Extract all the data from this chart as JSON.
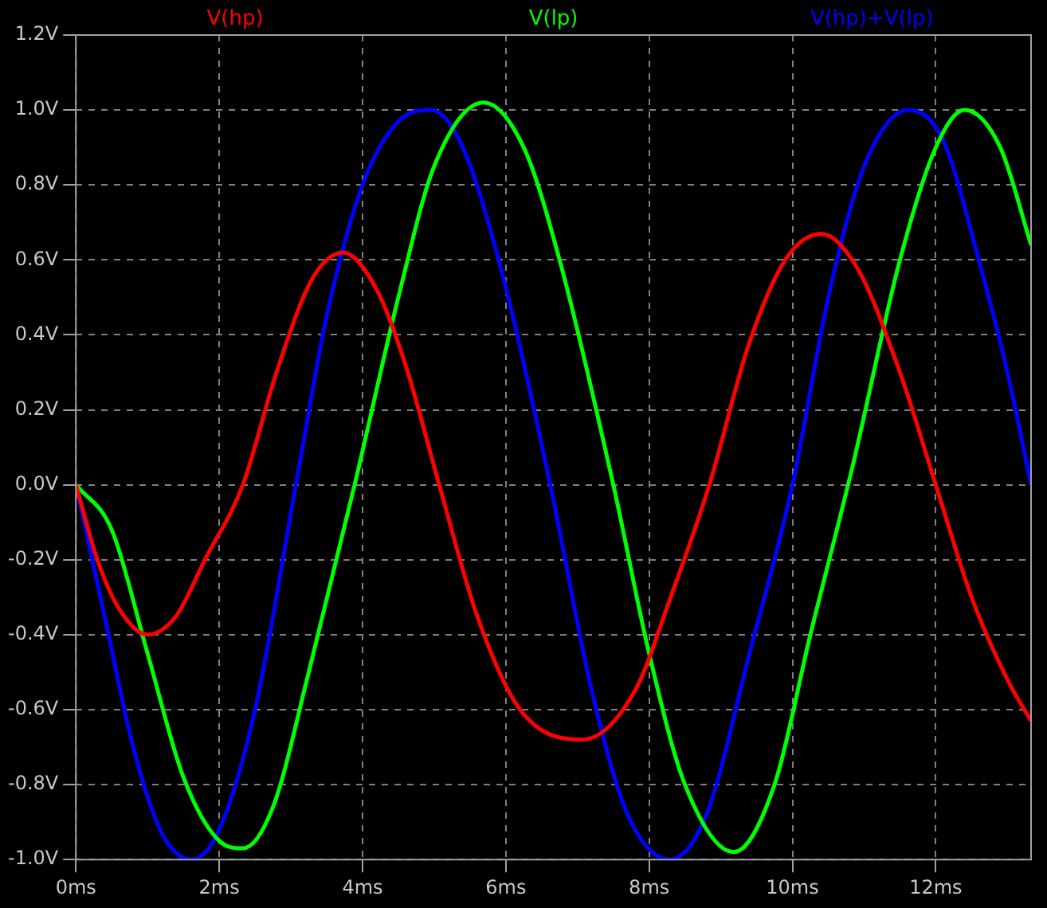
{
  "chart_data": {
    "type": "line",
    "xlim": [
      0,
      13.33
    ],
    "ylim": [
      -1.0,
      1.2
    ],
    "xticks": [
      {
        "value": 0,
        "label": "0ms"
      },
      {
        "value": 2,
        "label": "2ms"
      },
      {
        "value": 4,
        "label": "4ms"
      },
      {
        "value": 6,
        "label": "6ms"
      },
      {
        "value": 8,
        "label": "8ms"
      },
      {
        "value": 10,
        "label": "10ms"
      },
      {
        "value": 12,
        "label": "12ms"
      }
    ],
    "yticks": [
      {
        "value": -1.0,
        "label": "-1.0V"
      },
      {
        "value": -0.8,
        "label": "-0.8V"
      },
      {
        "value": -0.6,
        "label": "-0.6V"
      },
      {
        "value": -0.4,
        "label": "-0.4V"
      },
      {
        "value": -0.2,
        "label": "-0.2V"
      },
      {
        "value": 0,
        "label": "0.0V"
      },
      {
        "value": 0.2,
        "label": "0.2V"
      },
      {
        "value": 0.4,
        "label": "0.4V"
      },
      {
        "value": 0.6,
        "label": "0.6V"
      },
      {
        "value": 0.8,
        "label": "0.8V"
      },
      {
        "value": 1.0,
        "label": "1.0V"
      },
      {
        "value": 1.2,
        "label": "1.2V"
      }
    ],
    "grid": true,
    "legend": "top",
    "marker": "none",
    "line_style": "solid",
    "series": [
      {
        "name": "V(hp)",
        "color": "#ff0000",
        "x": [
          0,
          0.3,
          0.6,
          1.0,
          1.4,
          1.8,
          2.33,
          2.8,
          3.3,
          3.73,
          4.2,
          4.6,
          5.07,
          5.6,
          6.2,
          7.07,
          7.8,
          8.3,
          8.84,
          9.4,
          9.9,
          10.4,
          10.9,
          11.5,
          12.0,
          12.5,
          13.0,
          13.33
        ],
        "values": [
          0,
          -0.2,
          -0.33,
          -0.4,
          -0.35,
          -0.2,
          0,
          0.3,
          0.55,
          0.62,
          0.52,
          0.32,
          0,
          -0.35,
          -0.6,
          -0.68,
          -0.55,
          -0.3,
          0,
          0.38,
          0.6,
          0.67,
          0.58,
          0.3,
          0,
          -0.3,
          -0.52,
          -0.63
        ]
      },
      {
        "name": "V(lp)",
        "color": "#00ff00",
        "x": [
          0,
          0.5,
          1.0,
          1.5,
          2.0,
          2.33,
          2.75,
          3.25,
          3.89,
          4.5,
          5.0,
          5.69,
          6.25,
          6.75,
          7.5,
          8.0,
          8.5,
          9.18,
          9.75,
          10.25,
          10.84,
          11.5,
          12.0,
          12.4,
          12.9,
          13.33
        ],
        "values": [
          0,
          -0.12,
          -0.45,
          -0.78,
          -0.95,
          -0.97,
          -0.86,
          -0.5,
          0,
          0.5,
          0.85,
          1.02,
          0.9,
          0.6,
          0,
          -0.45,
          -0.8,
          -0.98,
          -0.8,
          -0.4,
          0.05,
          0.6,
          0.9,
          1.0,
          0.9,
          0.64
        ]
      },
      {
        "name": "V(hp)+V(lp)",
        "color": "#0000ff",
        "x": [
          0,
          0.4,
          0.8,
          1.2,
          1.62,
          2.0,
          2.5,
          3.07,
          3.5,
          4.0,
          4.5,
          4.96,
          5.4,
          5.9,
          6.62,
          7.2,
          7.7,
          8.29,
          8.8,
          9.4,
          10.0,
          10.5,
          11.0,
          11.62,
          12.1,
          12.6,
          13.0,
          13.33
        ],
        "values": [
          0,
          -0.35,
          -0.7,
          -0.93,
          -1.0,
          -0.92,
          -0.6,
          0,
          0.45,
          0.8,
          0.97,
          1.0,
          0.9,
          0.6,
          0,
          -0.55,
          -0.88,
          -1.0,
          -0.88,
          -0.45,
          0,
          0.5,
          0.85,
          1.0,
          0.92,
          0.6,
          0.3,
          0
        ]
      }
    ]
  }
}
